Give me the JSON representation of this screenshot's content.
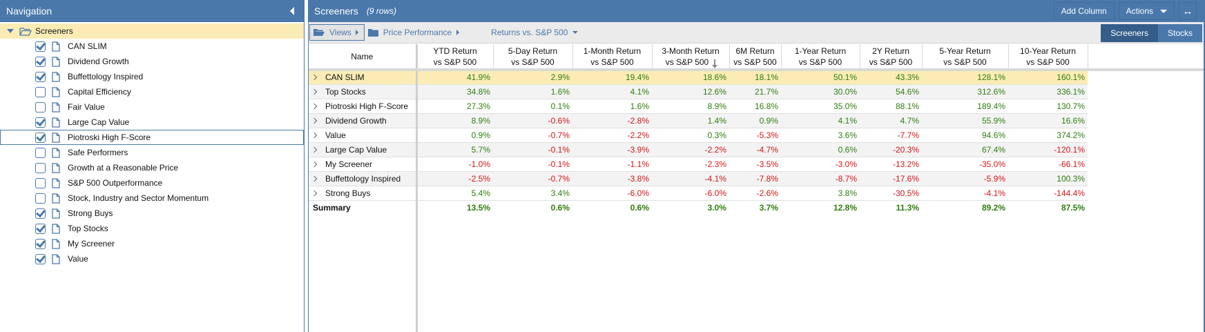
{
  "navigation": {
    "title": "Navigation",
    "root_label": "Screeners",
    "items": [
      {
        "label": "CAN SLIM",
        "checked": true
      },
      {
        "label": "Dividend Growth",
        "checked": true
      },
      {
        "label": "Buffettology Inspired",
        "checked": true
      },
      {
        "label": "Capital Efficiency",
        "checked": false
      },
      {
        "label": "Fair Value",
        "checked": false
      },
      {
        "label": "Large Cap Value",
        "checked": true
      },
      {
        "label": "Piotroski High F-Score",
        "checked": true,
        "selected": true
      },
      {
        "label": "Safe Performers",
        "checked": false
      },
      {
        "label": "Growth at a Reasonable Price",
        "checked": false
      },
      {
        "label": "S&P 500 Outperformance",
        "checked": false
      },
      {
        "label": "Stock, Industry and Sector Momentum",
        "checked": false
      },
      {
        "label": "Strong Buys",
        "checked": true
      },
      {
        "label": "Top Stocks",
        "checked": true
      },
      {
        "label": "My Screener",
        "checked": true
      },
      {
        "label": "Value",
        "checked": true
      }
    ]
  },
  "main": {
    "title": "Screeners",
    "row_count": "(9 rows)",
    "buttons": {
      "add_column": "Add Column",
      "actions": "Actions",
      "expand": "↔"
    },
    "toolbar": {
      "views": "Views",
      "breadcrumb_1": "Price Performance",
      "breadcrumb_2": "Returns vs. S&P 500",
      "segment_active": "Screeners",
      "segment_inactive": "Stocks"
    },
    "grid": {
      "columns": [
        {
          "line1": "Name",
          "line2": ""
        },
        {
          "line1": "YTD Return",
          "line2": "vs S&P 500"
        },
        {
          "line1": "5-Day Return",
          "line2": "vs S&P 500"
        },
        {
          "line1": "1-Month Return",
          "line2": "vs S&P 500"
        },
        {
          "line1": "3-Month Return",
          "line2": "vs S&P 500",
          "sorted": "desc"
        },
        {
          "line1": "6M Return",
          "line2": "vs S&P 500"
        },
        {
          "line1": "1-Year Return",
          "line2": "vs S&P 500"
        },
        {
          "line1": "2Y Return",
          "line2": "vs S&P 500"
        },
        {
          "line1": "5-Year Return",
          "line2": "vs S&P 500"
        },
        {
          "line1": "10-Year Return",
          "line2": "vs S&P 500"
        }
      ],
      "rows": [
        {
          "name": "CAN SLIM",
          "values": [
            "41.9%",
            "2.9%",
            "19.4%",
            "18.6%",
            "18.1%",
            "50.1%",
            "43.3%",
            "128.1%",
            "160.1%"
          ],
          "highlight": true
        },
        {
          "name": "Top Stocks",
          "values": [
            "34.8%",
            "1.6%",
            "4.1%",
            "12.6%",
            "21.7%",
            "30.0%",
            "54.6%",
            "312.6%",
            "336.1%"
          ]
        },
        {
          "name": "Piotroski High F-Score",
          "values": [
            "27.3%",
            "0.1%",
            "1.6%",
            "8.9%",
            "16.8%",
            "35.0%",
            "88.1%",
            "189.4%",
            "130.7%"
          ]
        },
        {
          "name": "Dividend Growth",
          "values": [
            "8.9%",
            "-0.6%",
            "-2.8%",
            "1.4%",
            "0.9%",
            "4.1%",
            "4.7%",
            "55.9%",
            "16.6%"
          ]
        },
        {
          "name": "Value",
          "values": [
            "0.9%",
            "-0.7%",
            "-2.2%",
            "0.3%",
            "-5.3%",
            "3.6%",
            "-7.7%",
            "94.6%",
            "374.2%"
          ]
        },
        {
          "name": "Large Cap Value",
          "values": [
            "5.7%",
            "-0.1%",
            "-3.9%",
            "-2.2%",
            "-4.7%",
            "0.6%",
            "-20.3%",
            "67.4%",
            "-120.1%"
          ]
        },
        {
          "name": "My Screener",
          "values": [
            "-1.0%",
            "-0.1%",
            "-1.1%",
            "-2.3%",
            "-3.5%",
            "-3.0%",
            "-13.2%",
            "-35.0%",
            "-66.1%"
          ]
        },
        {
          "name": "Buffettology Inspired",
          "values": [
            "-2.5%",
            "-0.7%",
            "-3.8%",
            "-4.1%",
            "-7.8%",
            "-8.7%",
            "-17.6%",
            "-5.9%",
            "100.3%"
          ]
        },
        {
          "name": "Strong Buys",
          "values": [
            "5.4%",
            "3.4%",
            "-6.0%",
            "-6.0%",
            "-2.6%",
            "3.8%",
            "-30.5%",
            "-4.1%",
            "-144.4%"
          ]
        }
      ],
      "summary": {
        "name": "Summary",
        "values": [
          "13.5%",
          "0.6%",
          "0.6%",
          "3.0%",
          "3.7%",
          "12.8%",
          "11.3%",
          "89.2%",
          "87.5%"
        ]
      }
    }
  },
  "colors": {
    "header_blue": "#4a78ab",
    "segment_active": "#365d8a",
    "highlight_row": "#fbecb6",
    "positive": "#2e7d0e",
    "negative": "#d01515"
  }
}
